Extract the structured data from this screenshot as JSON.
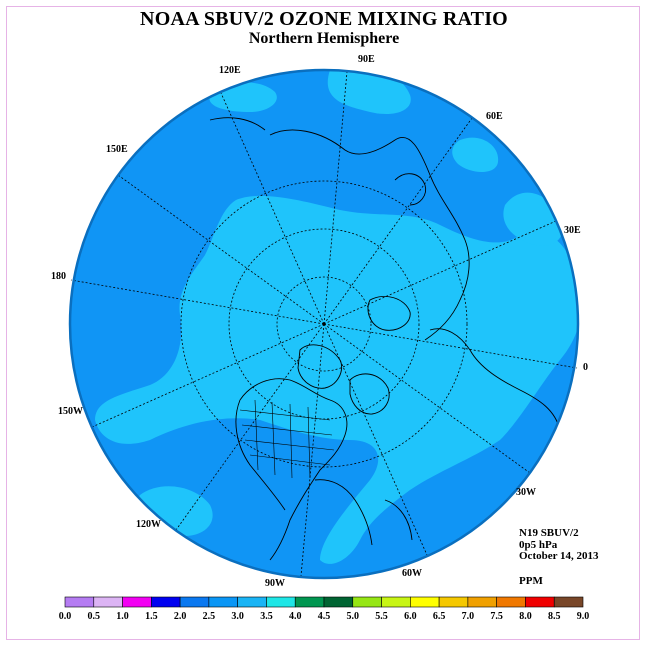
{
  "title": "NOAA SBUV/2 OZONE MIXING RATIO",
  "subtitle": "Northern Hemisphere",
  "info": {
    "satellite": "N19 SBUV/2",
    "level": "0p5 hPa",
    "date": "October 14, 2013",
    "units": "PPM"
  },
  "longitude_labels": [
    "90E",
    "120E",
    "60E",
    "150E",
    "30E",
    "180",
    "0",
    "150W",
    "30W",
    "120W",
    "60W",
    "90W"
  ],
  "colorbar": {
    "ticks": [
      "0.0",
      "0.5",
      "1.0",
      "1.5",
      "2.0",
      "2.5",
      "3.0",
      "3.5",
      "4.0",
      "4.5",
      "5.0",
      "5.5",
      "6.0",
      "6.5",
      "7.0",
      "7.5",
      "8.0",
      "8.5",
      "9.0"
    ],
    "colors": [
      "#b57cf2",
      "#dcb4f4",
      "#f200f2",
      "#0000f0",
      "#0a78f0",
      "#0a96f5",
      "#1ab4f5",
      "#1ee6e6",
      "#009650",
      "#006432",
      "#96e614",
      "#c8f514",
      "#ffff00",
      "#f5c800",
      "#f0a000",
      "#f07800",
      "#f00000",
      "#784628"
    ]
  },
  "field_colors": {
    "background_range": "#1095f5",
    "high_range": "#1fc4fb",
    "rim": "#0a6fbf"
  }
}
